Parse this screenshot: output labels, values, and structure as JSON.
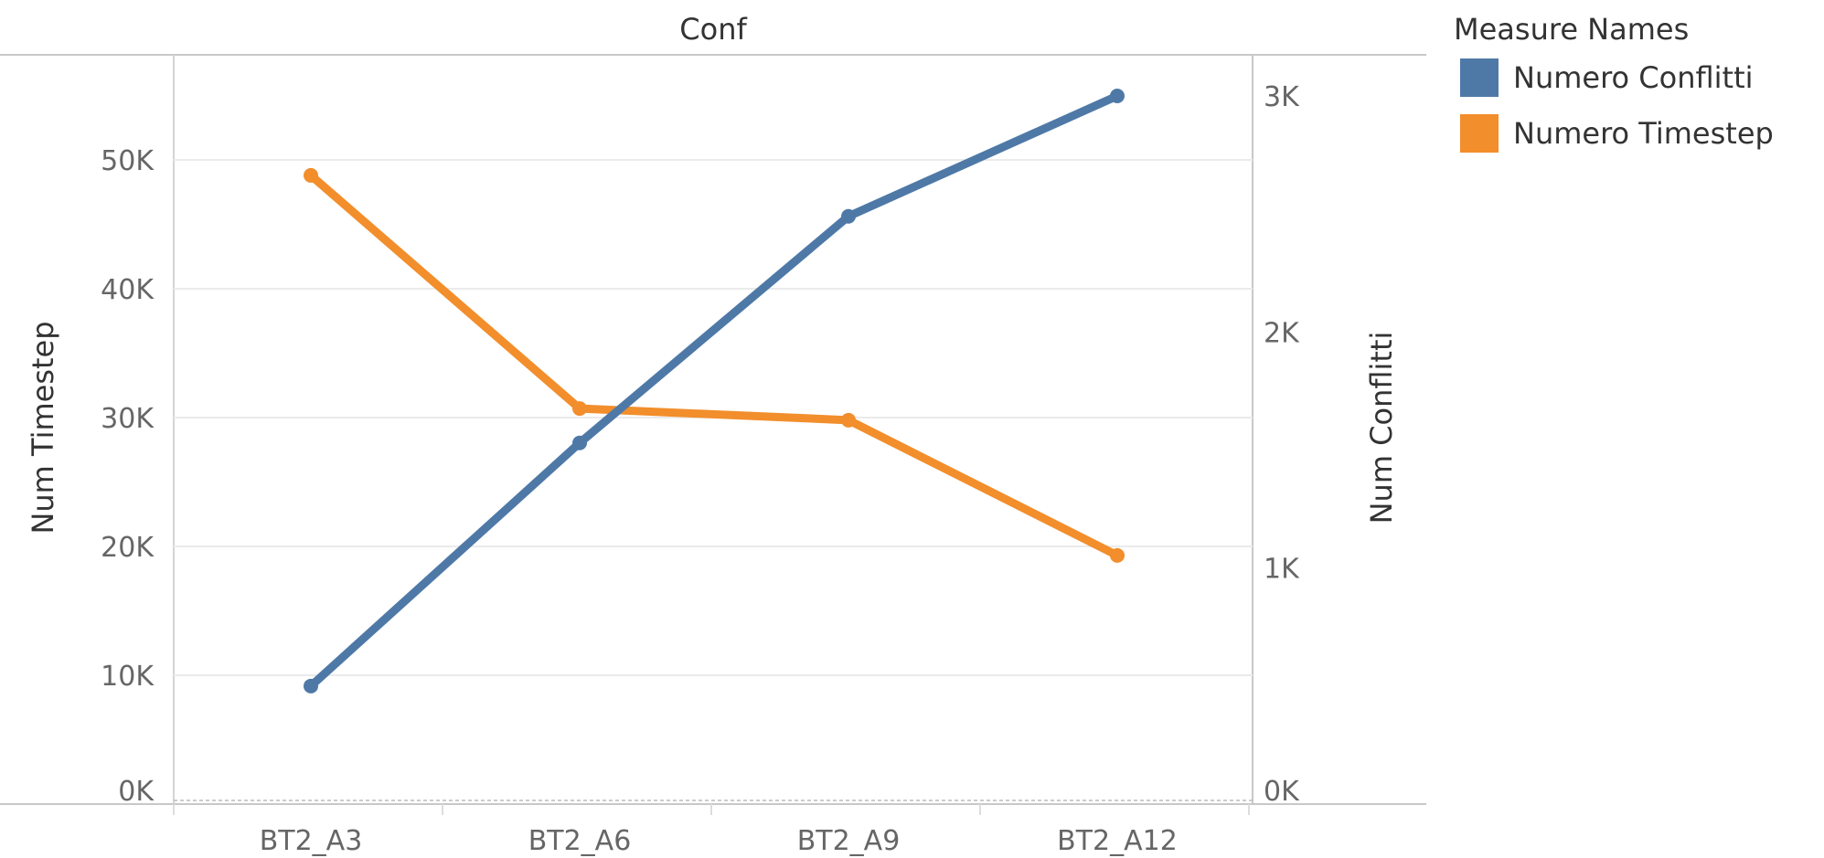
{
  "chart_data": {
    "type": "line",
    "title": "Conf",
    "categories": [
      "BT2_A3",
      "BT2_A6",
      "BT2_A9",
      "BT2_A12"
    ],
    "left_axis": {
      "label": "Num Timestep",
      "range": [
        0,
        57500
      ],
      "ticks": [
        "0K",
        "10K",
        "20K",
        "30K",
        "40K",
        "50K"
      ],
      "tick_values": [
        0,
        10000,
        20000,
        30000,
        40000,
        50000
      ]
    },
    "right_axis": {
      "label": "Num Conflitti",
      "range": [
        0,
        3075
      ],
      "ticks": [
        "0K",
        "1K",
        "2K",
        "3K"
      ],
      "tick_values": [
        0,
        1000,
        2000,
        3000
      ]
    },
    "series": [
      {
        "name": "Numero Conflitti",
        "axis": "right",
        "color": "#4E79A7",
        "values": [
          500,
          1530,
          2490,
          3000
        ]
      },
      {
        "name": "Numero Timestep",
        "axis": "left",
        "color": "#F28E2B",
        "values": [
          48800,
          30700,
          29800,
          19300
        ]
      }
    ],
    "legend": {
      "title": "Measure Names",
      "position": "top-right"
    },
    "grid": true
  }
}
